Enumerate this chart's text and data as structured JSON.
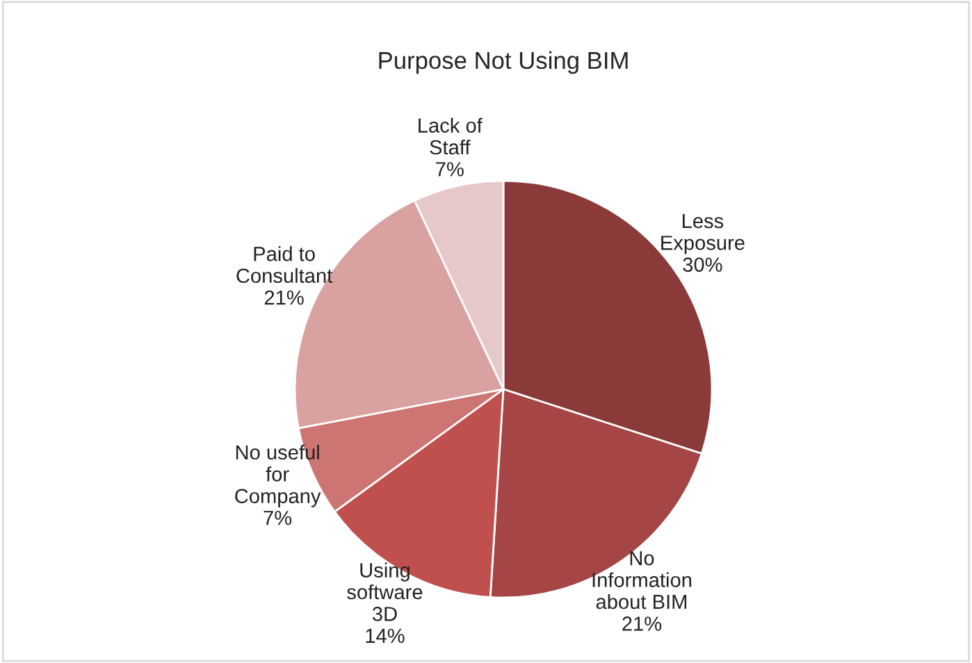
{
  "chart_data": {
    "type": "pie",
    "title": "Purpose Not Using BIM",
    "categories": [
      "Less\nExposure",
      "No\nInformation\nabout BIM",
      "Using\nsoftware\n3D",
      "No useful\nfor\nCompany",
      "Paid to\nConsultant",
      "Lack of\nStaff"
    ],
    "values": [
      30,
      21,
      14,
      7,
      21,
      7
    ],
    "colors": [
      "#8b3a3a",
      "#a54545",
      "#c0504d",
      "#cd7573",
      "#d9a1a0",
      "#e6c8c8"
    ],
    "value_labels": [
      "30%",
      "21%",
      "14%",
      "7%",
      "21%",
      "7%"
    ]
  }
}
